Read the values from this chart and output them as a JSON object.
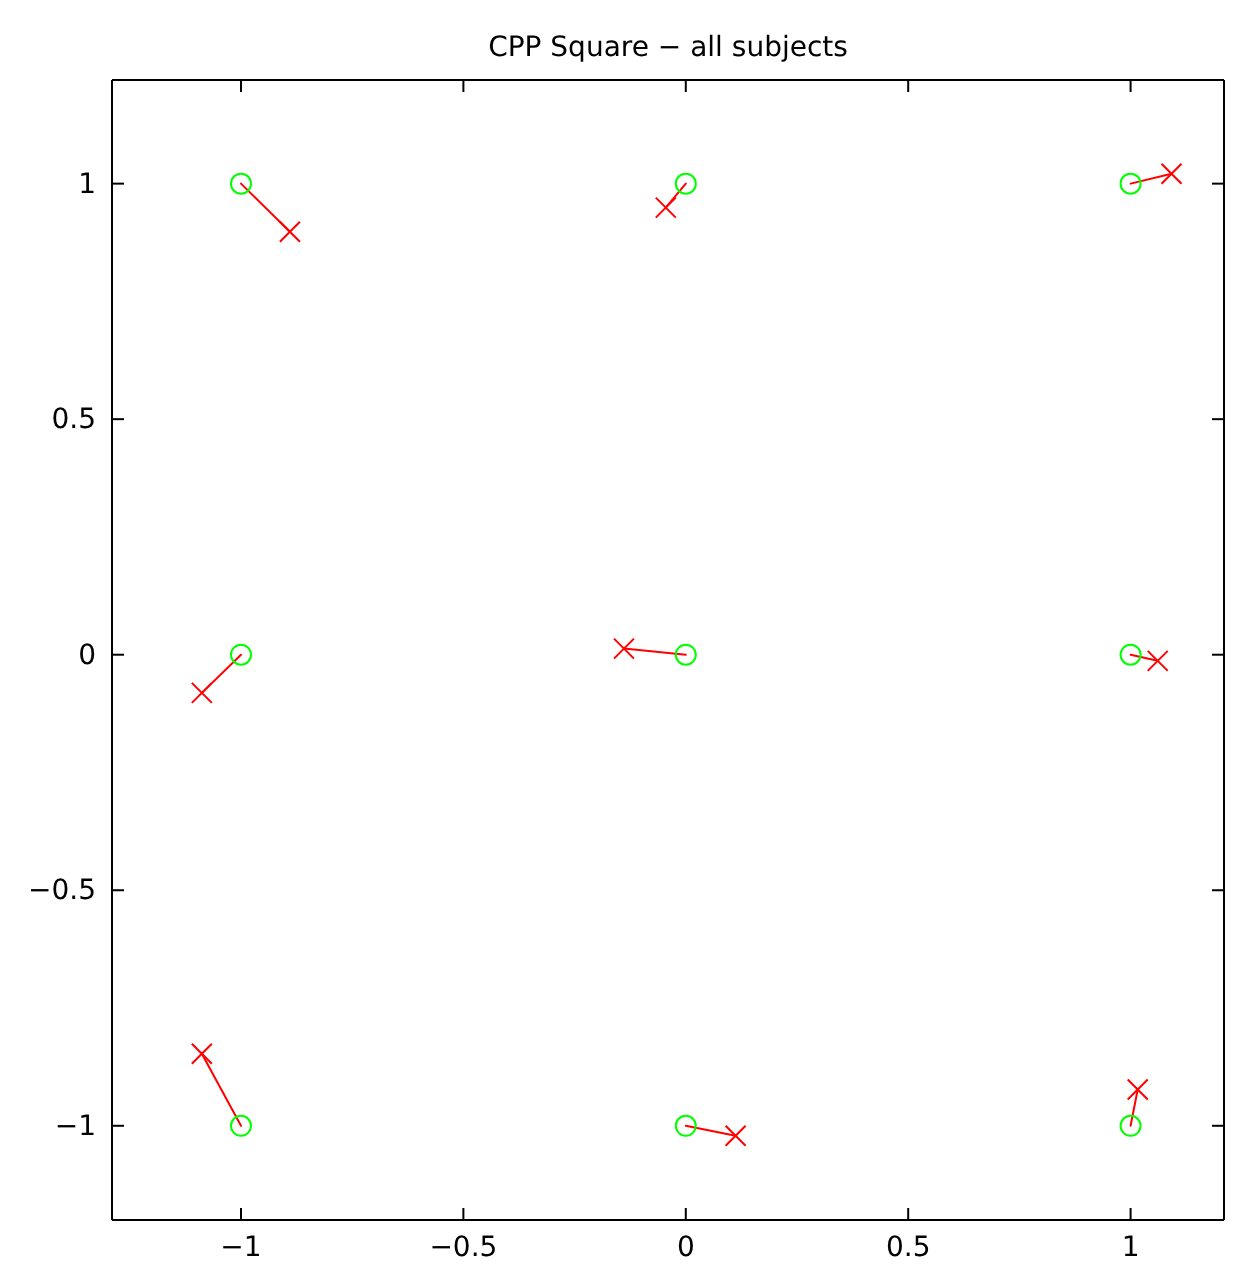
{
  "chart_data": {
    "type": "scatter",
    "title": "CPP Square − all subjects",
    "xlim": [
      -1.29,
      1.21
    ],
    "ylim": [
      -1.2,
      1.22
    ],
    "xticks": [
      -1,
      -0.5,
      0,
      0.5,
      1
    ],
    "yticks": [
      -1,
      -0.5,
      0,
      0.5,
      1
    ],
    "grid": false,
    "series": [
      {
        "type": "line",
        "color": "#ff0000",
        "marker": "none",
        "x": [
          -1,
          -0.89
        ],
        "values": [
          1,
          0.898
        ]
      },
      {
        "type": "line",
        "color": "#ff0000",
        "marker": "none",
        "x": [
          0,
          -0.045
        ],
        "values": [
          1,
          0.949
        ]
      },
      {
        "type": "line",
        "color": "#ff0000",
        "marker": "none",
        "x": [
          1,
          1.092
        ],
        "values": [
          1,
          1.021
        ]
      },
      {
        "type": "line",
        "color": "#ff0000",
        "marker": "none",
        "x": [
          -1,
          -1.088
        ],
        "values": [
          0,
          -0.081
        ]
      },
      {
        "type": "line",
        "color": "#ff0000",
        "marker": "none",
        "x": [
          0,
          -0.139
        ],
        "values": [
          0,
          0.013
        ]
      },
      {
        "type": "line",
        "color": "#ff0000",
        "marker": "none",
        "x": [
          1,
          1.061
        ],
        "values": [
          0,
          -0.013
        ]
      },
      {
        "type": "line",
        "color": "#ff0000",
        "marker": "none",
        "x": [
          -1,
          -1.088
        ],
        "values": [
          -1,
          -0.847
        ]
      },
      {
        "type": "line",
        "color": "#ff0000",
        "marker": "none",
        "x": [
          0,
          0.112
        ],
        "values": [
          -1,
          -1.021
        ]
      },
      {
        "type": "line",
        "color": "#ff0000",
        "marker": "none",
        "x": [
          1,
          1.016
        ],
        "values": [
          -1,
          -0.923
        ]
      },
      {
        "color": "#00ff00",
        "marker": "circle",
        "x": [
          -1,
          0,
          1,
          -1,
          0,
          1,
          -1,
          0,
          1
        ],
        "values": [
          1,
          1,
          1,
          0,
          0,
          0,
          -1,
          -1,
          -1
        ]
      },
      {
        "color": "#ff0000",
        "marker": "cross",
        "x": [
          -0.89,
          -0.045,
          1.092,
          -1.088,
          -0.139,
          1.061,
          -1.088,
          0.112,
          1.016
        ],
        "values": [
          0.898,
          0.949,
          1.021,
          -0.081,
          0.013,
          -0.013,
          -0.847,
          -1.021,
          -0.923
        ]
      }
    ]
  }
}
